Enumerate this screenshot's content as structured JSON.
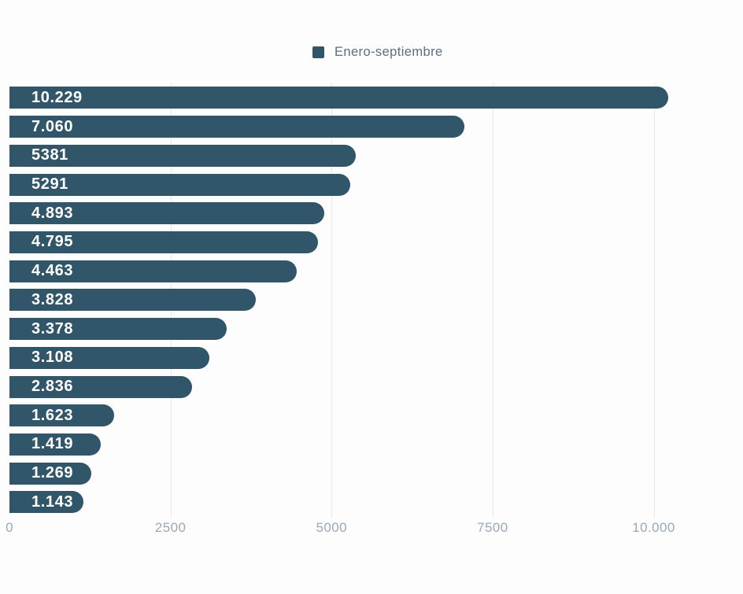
{
  "chart_data": {
    "type": "bar",
    "orientation": "horizontal",
    "title": "",
    "legend": [
      {
        "label": "Enero-septiembre"
      }
    ],
    "legend_position": "top-center",
    "series": [
      {
        "name": "Enero-septiembre",
        "values": [
          10229,
          7060,
          5381,
          5291,
          4893,
          4795,
          4463,
          3828,
          3378,
          3108,
          2836,
          1623,
          1419,
          1269,
          1143
        ]
      }
    ],
    "bar_labels": [
      "10.229",
      "7.060",
      "5381",
      "5291",
      "4.893",
      "4.795",
      "4.463",
      "3.828",
      "3.378",
      "3.108",
      "2.836",
      "1.623",
      "1.419",
      "1.269",
      "1.143"
    ],
    "xlabel": "",
    "ylabel": "",
    "xlim": [
      0,
      11240
    ],
    "x_ticks": [
      {
        "value": 0,
        "label": "0"
      },
      {
        "value": 2500,
        "label": "2500"
      },
      {
        "value": 5000,
        "label": "5000"
      },
      {
        "value": 7500,
        "label": "7500"
      },
      {
        "value": 10000,
        "label": "10.000"
      }
    ],
    "grid": "vertical",
    "colors": {
      "bar": "#315669",
      "bar_label": "#ffffff",
      "legend_text": "#5d6e80",
      "axis_label": "#9ba8b6",
      "gridline": "#e2e8ee",
      "background": "#fdfdfd"
    }
  }
}
